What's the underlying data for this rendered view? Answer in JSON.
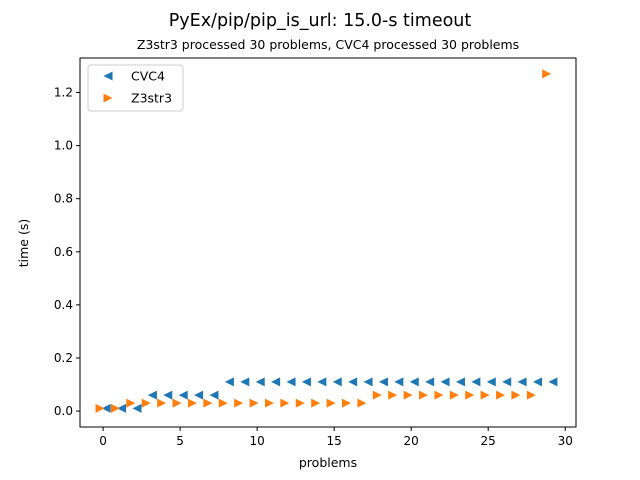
{
  "chart_data": {
    "type": "scatter",
    "title": "PyEx/pip/pip_is_url: 15.0-s timeout",
    "subtitle": "Z3str3 processed 30 problems, CVC4 processed 30 problems",
    "xlabel": "problems",
    "ylabel": "time (s)",
    "xlim": [
      -1.5,
      30.7
    ],
    "ylim": [
      -0.06,
      1.33
    ],
    "xticks": [
      0,
      5,
      10,
      15,
      20,
      25,
      30
    ],
    "yticks": [
      0.0,
      0.2,
      0.4,
      0.6,
      0.8,
      1.0,
      1.2
    ],
    "xtick_labels": [
      "0",
      "5",
      "10",
      "15",
      "20",
      "25",
      "30"
    ],
    "ytick_labels": [
      "0.0",
      "0.2",
      "0.4",
      "0.6",
      "0.8",
      "1.0",
      "1.2"
    ],
    "grid": false,
    "legend_position": "top-left",
    "series": [
      {
        "name": "CVC4",
        "marker": "triangle-left",
        "color": "#1f77b4",
        "x": [
          0.2,
          1.2,
          2.2,
          3.2,
          4.2,
          5.2,
          6.2,
          7.2,
          8.2,
          9.2,
          10.2,
          11.2,
          12.2,
          13.2,
          14.2,
          15.2,
          16.2,
          17.2,
          18.2,
          19.2,
          20.2,
          21.2,
          22.2,
          23.2,
          24.2,
          25.2,
          26.2,
          27.2,
          28.2,
          29.2
        ],
        "y": [
          0.01,
          0.01,
          0.01,
          0.06,
          0.06,
          0.06,
          0.06,
          0.06,
          0.11,
          0.11,
          0.11,
          0.11,
          0.11,
          0.11,
          0.11,
          0.11,
          0.11,
          0.11,
          0.11,
          0.11,
          0.11,
          0.11,
          0.11,
          0.11,
          0.11,
          0.11,
          0.11,
          0.11,
          0.11,
          0.11
        ]
      },
      {
        "name": "Z3str3",
        "marker": "triangle-right",
        "color": "#ff7f0e",
        "x": [
          -0.2,
          0.8,
          1.8,
          2.8,
          3.8,
          4.8,
          5.8,
          6.8,
          7.8,
          8.8,
          9.8,
          10.8,
          11.8,
          12.8,
          13.8,
          14.8,
          15.8,
          16.8,
          17.8,
          18.8,
          19.8,
          20.8,
          21.8,
          22.8,
          23.8,
          24.8,
          25.8,
          26.8,
          27.8,
          28.8
        ],
        "y": [
          0.01,
          0.01,
          0.03,
          0.03,
          0.03,
          0.03,
          0.03,
          0.03,
          0.03,
          0.03,
          0.03,
          0.03,
          0.03,
          0.03,
          0.03,
          0.03,
          0.03,
          0.03,
          0.06,
          0.06,
          0.06,
          0.06,
          0.06,
          0.06,
          0.06,
          0.06,
          0.06,
          0.06,
          0.06,
          1.27
        ]
      }
    ]
  }
}
